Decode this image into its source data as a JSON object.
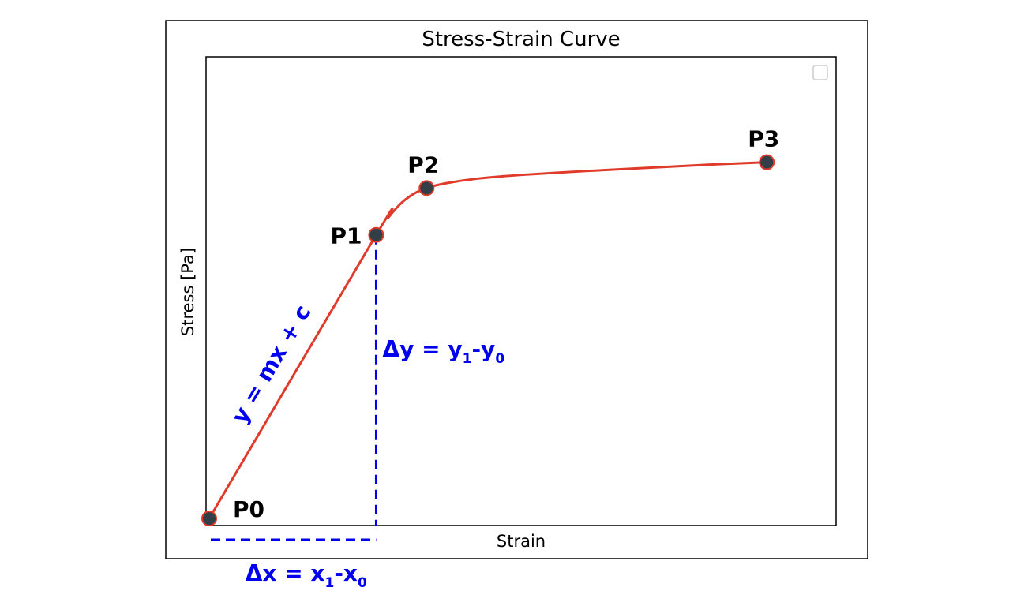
{
  "chart_data": {
    "type": "line",
    "title": "Stress-Strain Curve",
    "xlabel": "Strain",
    "ylabel": "Stress [Pa]",
    "xlim": [
      0,
      10
    ],
    "ylim": [
      0,
      10
    ],
    "grid": false,
    "legend": {
      "placement": "top-right",
      "entries": []
    },
    "colors": {
      "curve": "#e03a2a",
      "point_fill": "#333f48",
      "annotation": "#0000ee"
    },
    "points": [
      {
        "name": "P0",
        "x": 0.05,
        "y": 0.15
      },
      {
        "name": "P1",
        "x": 2.7,
        "y": 6.2
      },
      {
        "name": "P2",
        "x": 3.5,
        "y": 7.2
      },
      {
        "name": "P3",
        "x": 8.9,
        "y": 7.75
      }
    ],
    "curve": [
      {
        "x": 0.05,
        "y": 0.15
      },
      {
        "x": 2.7,
        "y": 6.2
      },
      {
        "x": 2.9,
        "y": 6.58
      },
      {
        "x": 3.1,
        "y": 6.88
      },
      {
        "x": 3.3,
        "y": 7.08
      },
      {
        "x": 3.5,
        "y": 7.2
      },
      {
        "x": 3.8,
        "y": 7.3
      },
      {
        "x": 4.3,
        "y": 7.4
      },
      {
        "x": 5.0,
        "y": 7.48
      },
      {
        "x": 6.0,
        "y": 7.56
      },
      {
        "x": 7.0,
        "y": 7.63
      },
      {
        "x": 8.0,
        "y": 7.7
      },
      {
        "x": 8.9,
        "y": 7.75
      }
    ],
    "annotations": {
      "slope_equation": "y = mx + c",
      "delta_y": {
        "main": "Δy = y",
        "sub1": "1",
        "mid": "-y",
        "sub2": "0"
      },
      "delta_x": {
        "main": "Δx = x",
        "sub1": "1",
        "mid": "-x",
        "sub2": "0"
      }
    }
  }
}
